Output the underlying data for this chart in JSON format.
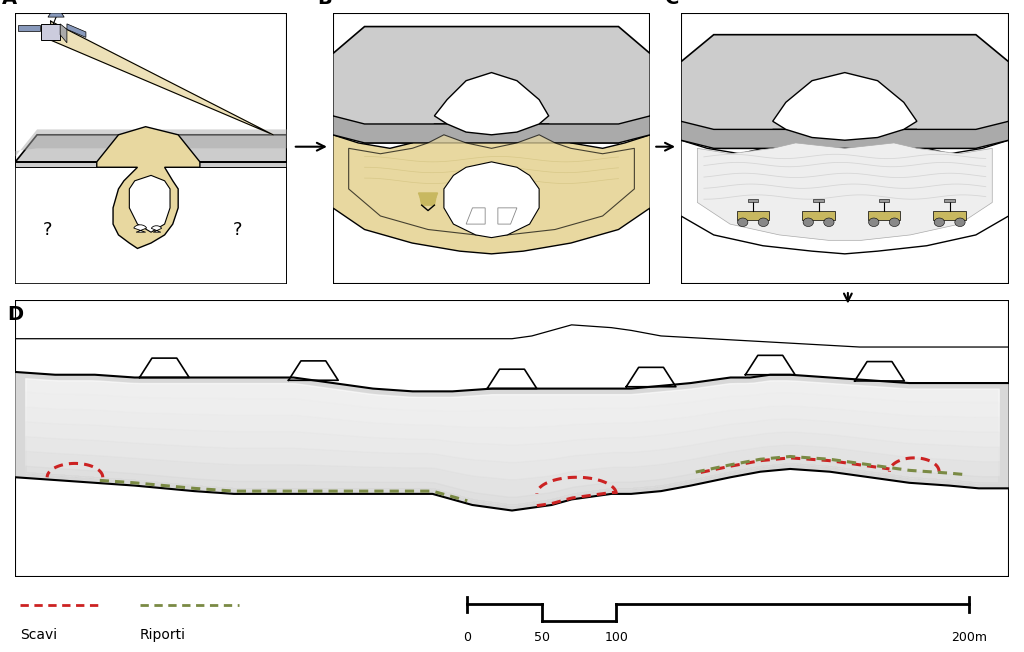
{
  "bg_color": "#ffffff",
  "gray_light": "#cccccc",
  "gray_medium": "#aaaaaa",
  "sand_color": "#e8d8a0",
  "sand_dark": "#c8b860",
  "label_A": "A",
  "label_B": "B",
  "label_C": "C",
  "label_D": "D",
  "scavi_color": "#cc2222",
  "riporti_color": "#7a8a44",
  "legend_scavi": "Scavi",
  "legend_riporti": "Riporti",
  "scale_label_0": "0",
  "scale_label_50": "50",
  "scale_label_100": "100",
  "scale_label_200": "200m"
}
